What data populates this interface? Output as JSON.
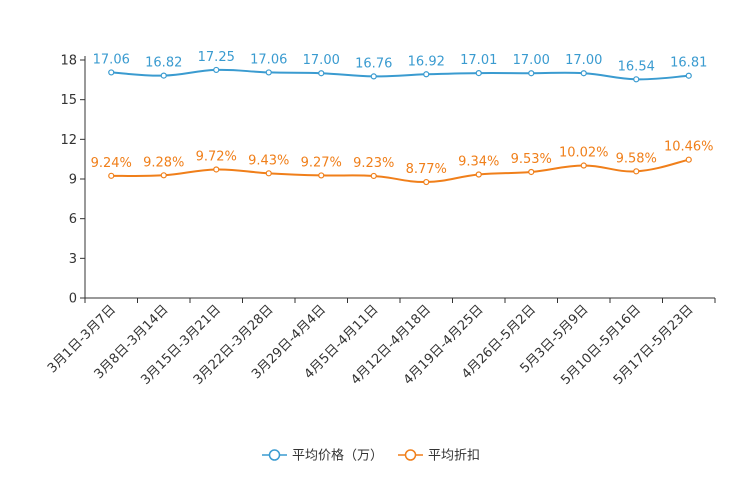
{
  "chart_data": {
    "type": "line",
    "title": "",
    "xlabel": "",
    "ylabel": "",
    "ylim": [
      0,
      18
    ],
    "yticks": [
      0,
      3,
      6,
      9,
      12,
      15,
      18
    ],
    "grid": false,
    "legend_position": "bottom-center",
    "categories": [
      "3月1日-3月7日",
      "3月8日-3月14日",
      "3月15日-3月21日",
      "3月22日-3月28日",
      "3月29日-4月4日",
      "4月5日-4月11日",
      "4月12日-4月18日",
      "4月19日-4月25日",
      "4月26日-5月2日",
      "5月3日-5月9日",
      "5月10日-5月16日",
      "5月17日-5月23日"
    ],
    "series": [
      {
        "name": "平均价格（万）",
        "color": "#3a9bd0",
        "values": [
          17.06,
          16.82,
          17.25,
          17.06,
          17.0,
          16.76,
          16.92,
          17.01,
          17.0,
          17.0,
          16.54,
          16.81
        ],
        "labels": [
          "17.06",
          "16.82",
          "17.25",
          "17.06",
          "17.00",
          "16.76",
          "16.92",
          "17.01",
          "17.00",
          "17.00",
          "16.54",
          "16.81"
        ]
      },
      {
        "name": "平均折扣",
        "color": "#f07f1a",
        "values": [
          9.24,
          9.28,
          9.72,
          9.43,
          9.27,
          9.23,
          8.77,
          9.34,
          9.53,
          10.02,
          9.58,
          10.46
        ],
        "labels": [
          "9.24%",
          "9.28%",
          "9.72%",
          "9.43%",
          "9.27%",
          "9.23%",
          "8.77%",
          "9.34%",
          "9.53%",
          "10.02%",
          "9.58%",
          "10.46%"
        ]
      }
    ]
  }
}
